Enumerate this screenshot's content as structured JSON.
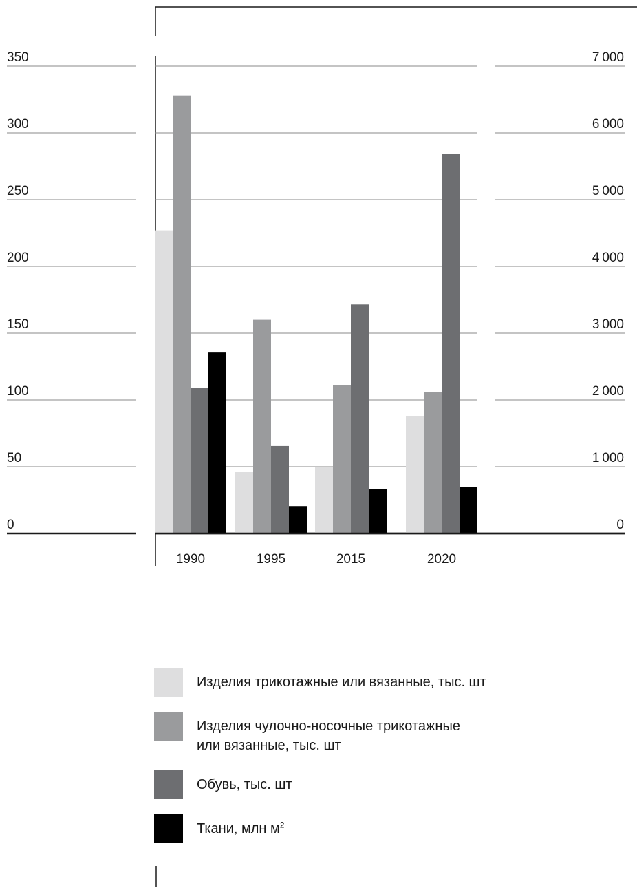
{
  "chart_data": {
    "type": "bar",
    "categories": [
      "1990",
      "1995",
      "2015",
      "2020"
    ],
    "left_axis": {
      "ylim": [
        0,
        350
      ],
      "ticks": [
        "0",
        "50",
        "100",
        "150",
        "200",
        "250",
        "300",
        "350"
      ]
    },
    "right_axis": {
      "ylim": [
        0,
        7000
      ],
      "ticks": [
        "0",
        "1000",
        "2000",
        "3000",
        "4000",
        "5000",
        "6000",
        "7000"
      ]
    },
    "series": [
      {
        "name": "Изделия трикотажные или вязанные, тыс. шт",
        "axis": "left",
        "color": "#dededf",
        "values": [
          227,
          46,
          50,
          88
        ]
      },
      {
        "name": "Изделия чулочно-носочные трикотажные или вязанные, тыс. шт",
        "axis": "left",
        "color": "#9a9b9d",
        "values": [
          328,
          160,
          111,
          106
        ]
      },
      {
        "name": "Обувь, тыс. шт",
        "axis": "right",
        "color": "#6d6e71",
        "values": [
          2180,
          1310,
          3430,
          5690
        ]
      },
      {
        "name": "Ткани, млн м2",
        "axis": "right",
        "color": "#000000",
        "values": [
          2710,
          410,
          660,
          700
        ]
      }
    ],
    "grid": true,
    "legend_position": "bottom"
  },
  "legend": [
    {
      "lines": [
        "Изделия трикотажные или вязанные, тыс. шт"
      ],
      "sup": ""
    },
    {
      "lines": [
        "Изделия чулочно-носочные трикотажные",
        "или вязанные, тыс. шт"
      ],
      "sup": ""
    },
    {
      "lines": [
        "Обувь, тыс. шт"
      ],
      "sup": ""
    },
    {
      "lines": [
        "Ткани, млн м"
      ],
      "sup": "2"
    }
  ]
}
